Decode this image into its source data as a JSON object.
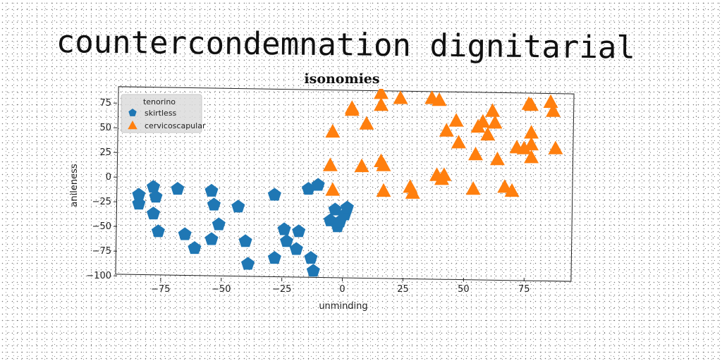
{
  "page": {
    "headline": "countercondemnation dignitarial"
  },
  "chart_data": {
    "type": "scatter",
    "title": "isonomies",
    "xlabel": "unminding",
    "ylabel": "anileness",
    "xlim": [
      -93,
      95
    ],
    "ylim": [
      -102,
      88
    ],
    "xticks": [
      -75,
      -50,
      -25,
      0,
      25,
      50,
      75
    ],
    "xtick_labels": [
      "−75",
      "−50",
      "−25",
      "0",
      "25",
      "50",
      "75"
    ],
    "yticks": [
      -100,
      -75,
      -50,
      -25,
      0,
      25,
      50,
      75
    ],
    "ytick_labels": [
      "−100",
      "−75",
      "−50",
      "−25",
      "0",
      "25",
      "50",
      "75"
    ],
    "grid": false,
    "legend": {
      "title": "tenorino",
      "position": "top-left"
    },
    "series": [
      {
        "name": "skirtless",
        "color": "#1f77b4",
        "marker": "pentagon",
        "points": [
          [
            -84,
            -18
          ],
          [
            -84,
            -27
          ],
          [
            -78,
            -10
          ],
          [
            -77,
            -20
          ],
          [
            -78,
            -37
          ],
          [
            -76,
            -55
          ],
          [
            -68,
            -12
          ],
          [
            -65,
            -58
          ],
          [
            -61,
            -72
          ],
          [
            -54,
            -14
          ],
          [
            -53,
            -28
          ],
          [
            -54,
            -63
          ],
          [
            -51,
            -48
          ],
          [
            -43,
            -30
          ],
          [
            -40,
            -65
          ],
          [
            -39,
            -88
          ],
          [
            -28,
            -18
          ],
          [
            -28,
            -82
          ],
          [
            -24,
            -53
          ],
          [
            -23,
            -65
          ],
          [
            -19,
            -73
          ],
          [
            -18,
            -55
          ],
          [
            -14,
            -12
          ],
          [
            -13,
            -82
          ],
          [
            -12,
            -95
          ],
          [
            -10,
            -8
          ],
          [
            -5,
            -44
          ],
          [
            -3,
            -33
          ],
          [
            -2,
            -50
          ],
          [
            -1,
            -45
          ],
          [
            1,
            -38
          ],
          [
            2,
            -31
          ]
        ]
      },
      {
        "name": "cervicoscapular",
        "color": "#ff7f0e",
        "marker": "triangle",
        "points": [
          [
            -4,
            46
          ],
          [
            -5,
            12
          ],
          [
            -4,
            -13
          ],
          [
            4,
            68
          ],
          [
            4,
            70
          ],
          [
            8,
            11
          ],
          [
            10,
            54
          ],
          [
            16,
            16
          ],
          [
            17,
            12
          ],
          [
            16,
            73
          ],
          [
            16,
            85
          ],
          [
            17,
            -14
          ],
          [
            24,
            80
          ],
          [
            28,
            -10
          ],
          [
            29,
            -16
          ],
          [
            37,
            80
          ],
          [
            40,
            78
          ],
          [
            39,
            2
          ],
          [
            41,
            -2
          ],
          [
            42,
            2
          ],
          [
            43,
            47
          ],
          [
            47,
            57
          ],
          [
            48,
            35
          ],
          [
            54,
            -12
          ],
          [
            55,
            23
          ],
          [
            56,
            51
          ],
          [
            58,
            56
          ],
          [
            60,
            43
          ],
          [
            62,
            67
          ],
          [
            63,
            55
          ],
          [
            64,
            18
          ],
          [
            67,
            -10
          ],
          [
            70,
            -14
          ],
          [
            72,
            30
          ],
          [
            75,
            29
          ],
          [
            77,
            74
          ],
          [
            78,
            73
          ],
          [
            78,
            45
          ],
          [
            78,
            33
          ],
          [
            78,
            20
          ],
          [
            86,
            76
          ],
          [
            87,
            67
          ],
          [
            88,
            29
          ]
        ]
      }
    ]
  }
}
